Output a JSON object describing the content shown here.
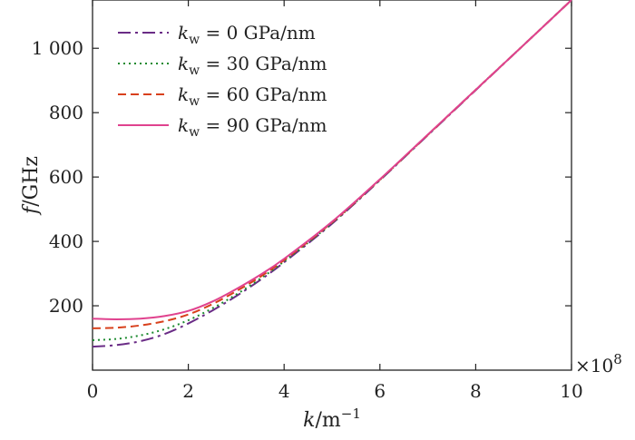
{
  "chart_data": {
    "type": "line",
    "title": "",
    "xlabel_main": "k",
    "xlabel_unit": "/m",
    "xlabel_sup": "−1",
    "ylabel_main": "f",
    "ylabel_unit": "/GHz",
    "x_multiplier_base": "×10",
    "x_multiplier_exp": "8",
    "xlim": [
      0,
      10
    ],
    "ylim": [
      0,
      1150
    ],
    "xticks": [
      0,
      2,
      4,
      6,
      8,
      10
    ],
    "yticks": [
      200,
      400,
      600,
      800,
      1000
    ],
    "ytick_labels": [
      "200",
      "400",
      "600",
      "800",
      "1 000"
    ],
    "grid": false,
    "legend_position": "top-left",
    "series": [
      {
        "name": "k_w = 0 GPa/nm",
        "label_var": "k",
        "label_sub": "w",
        "label_rest": " = 0 GPa/nm",
        "color": "#6a2c86",
        "dash": "14,5,3,5",
        "x": [
          0,
          0.5,
          1,
          1.5,
          2,
          2.5,
          3,
          3.5,
          4,
          5,
          6,
          7,
          8,
          9,
          10
        ],
        "y": [
          73,
          78,
          90,
          112,
          145,
          185,
          230,
          280,
          335,
          455,
          590,
          730,
          870,
          1010,
          1150
        ]
      },
      {
        "name": "k_w = 30 GPa/nm",
        "label_var": "k",
        "label_sub": "w",
        "label_rest": " = 30 GPa/nm",
        "color": "#1b8a2e",
        "dash": "2,4",
        "x": [
          0,
          0.5,
          1,
          1.5,
          2,
          2.5,
          3,
          3.5,
          4,
          5,
          6,
          7,
          8,
          9,
          10
        ],
        "y": [
          93,
          97,
          108,
          127,
          155,
          192,
          235,
          284,
          338,
          457,
          591,
          731,
          871,
          1010,
          1150
        ]
      },
      {
        "name": "k_w = 60 GPa/nm",
        "label_var": "k",
        "label_sub": "w",
        "label_rest": " = 60 GPa/nm",
        "color": "#d8401c",
        "dash": "9,5",
        "x": [
          0,
          0.5,
          1,
          1.5,
          2,
          2.5,
          3,
          3.5,
          4,
          5,
          6,
          7,
          8,
          9,
          10
        ],
        "y": [
          130,
          132,
          139,
          152,
          173,
          205,
          245,
          290,
          342,
          459,
          592,
          731,
          871,
          1010,
          1150
        ]
      },
      {
        "name": "k_w = 90 GPa/nm",
        "label_var": "k",
        "label_sub": "w",
        "label_rest": " = 90 GPa/nm",
        "color": "#e0428e",
        "dash": "",
        "x": [
          0,
          0.5,
          1,
          1.5,
          2,
          2.5,
          3,
          3.5,
          4,
          5,
          6,
          7,
          8,
          9,
          10
        ],
        "y": [
          160,
          158,
          160,
          168,
          184,
          213,
          252,
          296,
          346,
          461,
          593,
          732,
          871,
          1010,
          1150
        ]
      }
    ]
  }
}
